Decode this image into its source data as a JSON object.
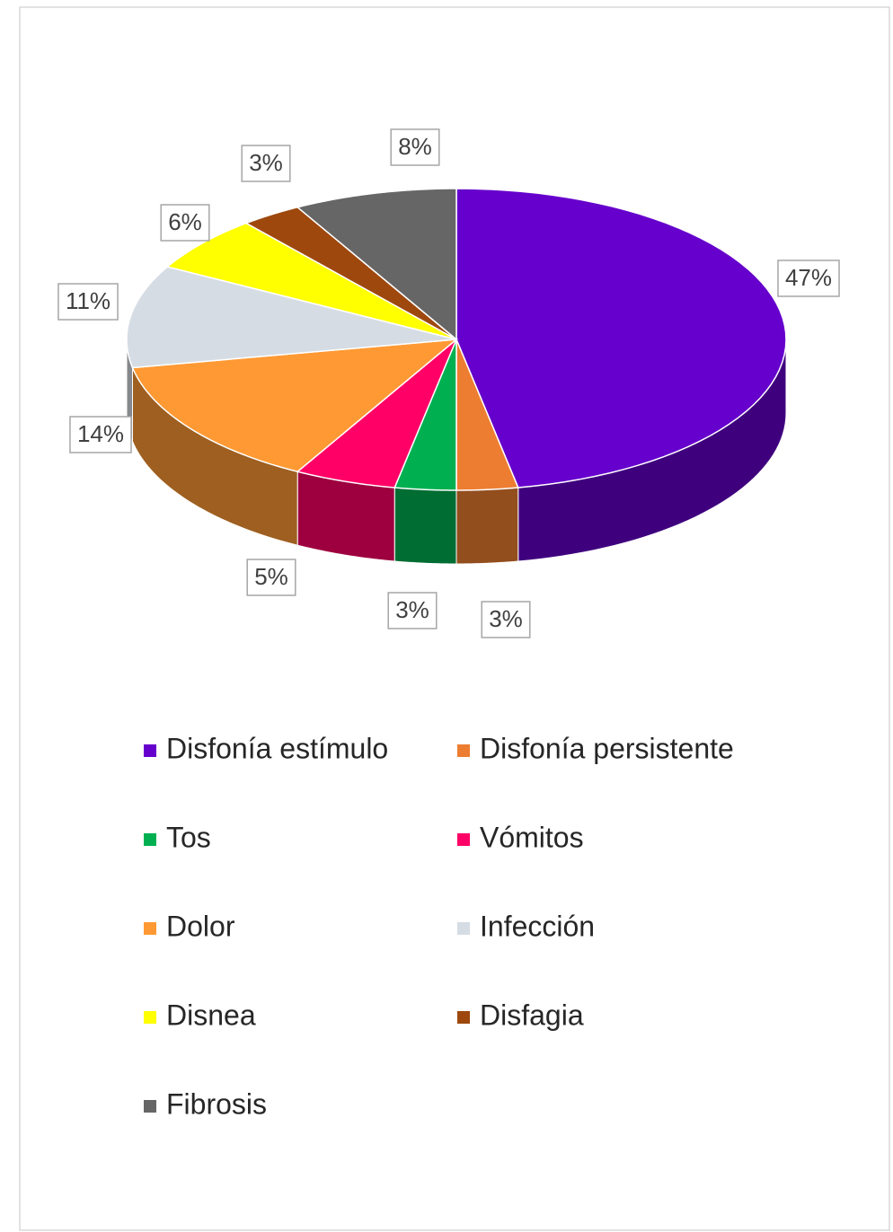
{
  "chart_data": {
    "type": "pie3d",
    "categories": [
      "Disfonía estímulo",
      "Disfonía persistente",
      "Tos",
      "Vómitos",
      "Dolor",
      "Infección",
      "Disnea",
      "Disfagia",
      "Fibrosis"
    ],
    "values": [
      47,
      3,
      3,
      5,
      14,
      11,
      6,
      3,
      8
    ],
    "value_labels": [
      "47%",
      "3%",
      "3%",
      "5%",
      "14%",
      "11%",
      "6%",
      "3%",
      "8%"
    ],
    "colors": [
      "#6600cc",
      "#ed7d31",
      "#00b050",
      "#ff0066",
      "#ff9933",
      "#d6dce4",
      "#ffff00",
      "#9e480e",
      "#666666"
    ],
    "legend": "bottom"
  }
}
